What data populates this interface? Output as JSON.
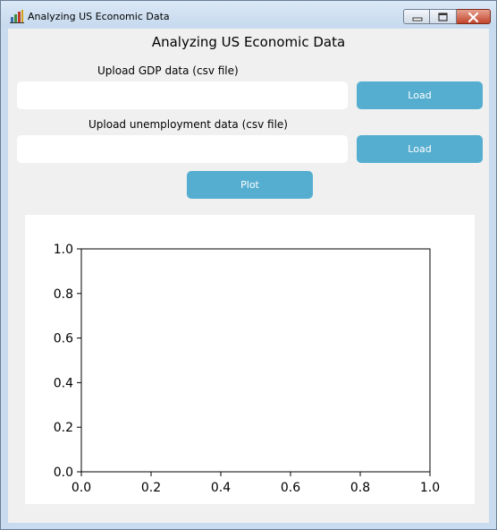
{
  "window": {
    "title": "Analyzing US Economic Data",
    "controls": {
      "minimize": "minimize",
      "maximize": "maximize",
      "close": "close"
    }
  },
  "app": {
    "heading": "Analyzing US Economic Data",
    "gdp": {
      "label": "Upload GDP data (csv file)",
      "value": "",
      "placeholder": "",
      "load_label": "Load"
    },
    "unemployment": {
      "label": "Upload unemployment data (csv file)",
      "value": "",
      "placeholder": "",
      "load_label": "Load"
    },
    "plot_label": "Plot"
  },
  "colors": {
    "button": "#55aed0",
    "client_bg": "#f0f0f0",
    "plot_bg": "#ffffff"
  },
  "chart_data": {
    "type": "line",
    "series": [],
    "title": "",
    "xlabel": "",
    "ylabel": "",
    "xlim": [
      0.0,
      1.0
    ],
    "ylim": [
      0.0,
      1.0
    ],
    "xticks": [
      "0.0",
      "0.2",
      "0.4",
      "0.6",
      "0.8",
      "1.0"
    ],
    "yticks": [
      "0.0",
      "0.2",
      "0.4",
      "0.6",
      "0.8",
      "1.0"
    ],
    "grid": false,
    "legend": "none"
  }
}
